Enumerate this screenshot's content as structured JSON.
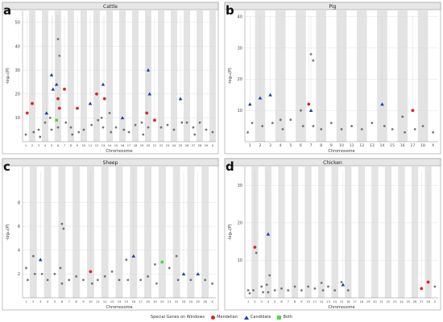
{
  "colors": {
    "band": "#e3e3e3",
    "strip": "#e6e6e6",
    "grid": "#d9d9d9",
    "point": "#555555",
    "mendelian": "#d62728",
    "candidate": "#1f3faa",
    "both": "#4fd44f"
  },
  "legend": {
    "title": "Special Genes on Windows",
    "items": [
      {
        "label": "Mendelian",
        "shape": "circle"
      },
      {
        "label": "Candidate",
        "shape": "triangle"
      },
      {
        "label": "Both",
        "shape": "square"
      }
    ]
  },
  "chart_data": [
    {
      "type": "scatter",
      "panel_label": "a",
      "title": "Cattle",
      "xlabel": "Chromosome",
      "ylabel": "-log₁₀(P)",
      "ylim": [
        0,
        55
      ],
      "yticks": [
        10,
        20,
        30,
        40,
        50
      ],
      "chromosomes": [
        "1",
        "2",
        "3",
        "4",
        "5",
        "6",
        "7",
        "8",
        "9",
        "10",
        "11",
        "12",
        "13",
        "14",
        "15",
        "16",
        "17",
        "18",
        "19",
        "20",
        "21",
        "22",
        "23",
        "24",
        "25",
        "26",
        "27",
        "28",
        "29",
        "X"
      ],
      "points": [
        {
          "chr": "1",
          "y": 3
        },
        {
          "chr": "1",
          "y": 12,
          "type": "mendelian"
        },
        {
          "chr": "2",
          "y": 16,
          "type": "mendelian"
        },
        {
          "chr": "2",
          "y": 4
        },
        {
          "chr": "3",
          "y": 5
        },
        {
          "chr": "3",
          "y": 2
        },
        {
          "chr": "4",
          "y": 8
        },
        {
          "chr": "4",
          "y": 12,
          "type": "candidate"
        },
        {
          "chr": "5",
          "y": 28,
          "type": "candidate"
        },
        {
          "chr": "5",
          "y": 22,
          "type": "candidate"
        },
        {
          "chr": "5",
          "y": 10
        },
        {
          "chr": "5",
          "y": 5
        },
        {
          "chr": "6",
          "y": 43
        },
        {
          "chr": "6",
          "y": 36
        },
        {
          "chr": "6",
          "y": 24,
          "type": "candidate"
        },
        {
          "chr": "6",
          "y": 18,
          "type": "mendelian"
        },
        {
          "chr": "6",
          "y": 14,
          "type": "mendelian"
        },
        {
          "chr": "6",
          "y": 9,
          "type": "both"
        },
        {
          "chr": "6",
          "y": 6
        },
        {
          "chr": "7",
          "y": 22,
          "type": "mendelian"
        },
        {
          "chr": "7",
          "y": 8
        },
        {
          "chr": "8",
          "y": 6
        },
        {
          "chr": "8",
          "y": 3
        },
        {
          "chr": "9",
          "y": 14,
          "type": "mendelian"
        },
        {
          "chr": "9",
          "y": 4
        },
        {
          "chr": "10",
          "y": 5
        },
        {
          "chr": "11",
          "y": 16,
          "type": "candidate"
        },
        {
          "chr": "11",
          "y": 7
        },
        {
          "chr": "12",
          "y": 20,
          "type": "mendelian"
        },
        {
          "chr": "12",
          "y": 9
        },
        {
          "chr": "13",
          "y": 24,
          "type": "candidate"
        },
        {
          "chr": "13",
          "y": 18,
          "type": "mendelian"
        },
        {
          "chr": "13",
          "y": 10
        },
        {
          "chr": "13",
          "y": 6
        },
        {
          "chr": "14",
          "y": 12
        },
        {
          "chr": "14",
          "y": 4
        },
        {
          "chr": "15",
          "y": 6
        },
        {
          "chr": "16",
          "y": 10,
          "type": "candidate"
        },
        {
          "chr": "16",
          "y": 5
        },
        {
          "chr": "17",
          "y": 4
        },
        {
          "chr": "18",
          "y": 7
        },
        {
          "chr": "19",
          "y": 8
        },
        {
          "chr": "19",
          "y": 3
        },
        {
          "chr": "20",
          "y": 30,
          "type": "candidate"
        },
        {
          "chr": "20",
          "y": 20,
          "type": "candidate"
        },
        {
          "chr": "20",
          "y": 12,
          "type": "mendelian"
        },
        {
          "chr": "20",
          "y": 6
        },
        {
          "chr": "21",
          "y": 9,
          "type": "mendelian"
        },
        {
          "chr": "22",
          "y": 6
        },
        {
          "chr": "23",
          "y": 7
        },
        {
          "chr": "24",
          "y": 5
        },
        {
          "chr": "25",
          "y": 18,
          "type": "candidate"
        },
        {
          "chr": "25",
          "y": 8
        },
        {
          "chr": "26",
          "y": 8
        },
        {
          "chr": "27",
          "y": 6
        },
        {
          "chr": "27",
          "y": 3
        },
        {
          "chr": "28",
          "y": 8
        },
        {
          "chr": "29",
          "y": 5
        },
        {
          "chr": "X",
          "y": 4
        }
      ]
    },
    {
      "type": "scatter",
      "panel_label": "b",
      "title": "Pig",
      "xlabel": "Chromosome",
      "ylabel": "-log₁₀(P)",
      "ylim": [
        0,
        42
      ],
      "yticks": [
        10,
        20,
        30,
        40
      ],
      "chromosomes": [
        "1",
        "2",
        "3",
        "4",
        "5",
        "6",
        "7",
        "8",
        "9",
        "10",
        "11",
        "12",
        "13",
        "14",
        "15",
        "16",
        "17",
        "18",
        "X"
      ],
      "points": [
        {
          "chr": "1",
          "y": 12,
          "type": "candidate"
        },
        {
          "chr": "1",
          "y": 6
        },
        {
          "chr": "1",
          "y": 3
        },
        {
          "chr": "2",
          "y": 14,
          "type": "candidate"
        },
        {
          "chr": "2",
          "y": 5
        },
        {
          "chr": "3",
          "y": 15,
          "type": "candidate"
        },
        {
          "chr": "3",
          "y": 6
        },
        {
          "chr": "4",
          "y": 7
        },
        {
          "chr": "4",
          "y": 4
        },
        {
          "chr": "5",
          "y": 7
        },
        {
          "chr": "6",
          "y": 10
        },
        {
          "chr": "6",
          "y": 5
        },
        {
          "chr": "7",
          "y": 28
        },
        {
          "chr": "7",
          "y": 26
        },
        {
          "chr": "7",
          "y": 12,
          "type": "mendelian"
        },
        {
          "chr": "7",
          "y": 10,
          "type": "candidate"
        },
        {
          "chr": "7",
          "y": 5
        },
        {
          "chr": "8",
          "y": 4
        },
        {
          "chr": "9",
          "y": 6
        },
        {
          "chr": "10",
          "y": 4
        },
        {
          "chr": "11",
          "y": 5
        },
        {
          "chr": "12",
          "y": 4
        },
        {
          "chr": "13",
          "y": 6
        },
        {
          "chr": "14",
          "y": 12,
          "type": "candidate"
        },
        {
          "chr": "14",
          "y": 5
        },
        {
          "chr": "15",
          "y": 4
        },
        {
          "chr": "16",
          "y": 8
        },
        {
          "chr": "16",
          "y": 3
        },
        {
          "chr": "17",
          "y": 10,
          "type": "mendelian"
        },
        {
          "chr": "17",
          "y": 4
        },
        {
          "chr": "18",
          "y": 5
        },
        {
          "chr": "X",
          "y": 3
        }
      ]
    },
    {
      "type": "scatter",
      "panel_label": "c",
      "title": "Sheep",
      "xlabel": "Chromosome",
      "ylabel": "-log₁₀(P)",
      "ylim": [
        0,
        11
      ],
      "yticks": [
        2,
        4,
        6,
        8
      ],
      "chromosomes": [
        "1",
        "2",
        "3",
        "4",
        "5",
        "6",
        "7",
        "8",
        "9",
        "10",
        "11",
        "12",
        "13",
        "14",
        "15",
        "16",
        "17",
        "18",
        "19",
        "20",
        "21",
        "22",
        "23",
        "24",
        "25",
        "26",
        "X"
      ],
      "points": [
        {
          "chr": "1",
          "y": 2.5
        },
        {
          "chr": "1",
          "y": 1.5
        },
        {
          "chr": "2",
          "y": 3.5
        },
        {
          "chr": "2",
          "y": 2
        },
        {
          "chr": "3",
          "y": 3.2,
          "type": "candidate"
        },
        {
          "chr": "3",
          "y": 2
        },
        {
          "chr": "4",
          "y": 1.5
        },
        {
          "chr": "5",
          "y": 2
        },
        {
          "chr": "6",
          "y": 6.2
        },
        {
          "chr": "6",
          "y": 5.8
        },
        {
          "chr": "6",
          "y": 2.5
        },
        {
          "chr": "6",
          "y": 1.2
        },
        {
          "chr": "7",
          "y": 1.5
        },
        {
          "chr": "8",
          "y": 1.8
        },
        {
          "chr": "9",
          "y": 1.5
        },
        {
          "chr": "10",
          "y": 2.2,
          "type": "mendelian"
        },
        {
          "chr": "10",
          "y": 1.2
        },
        {
          "chr": "11",
          "y": 1.5
        },
        {
          "chr": "12",
          "y": 1.8
        },
        {
          "chr": "13",
          "y": 2.2
        },
        {
          "chr": "14",
          "y": 1.5
        },
        {
          "chr": "15",
          "y": 3.2
        },
        {
          "chr": "15",
          "y": 1.5
        },
        {
          "chr": "16",
          "y": 3.5,
          "type": "candidate"
        },
        {
          "chr": "17",
          "y": 1.5
        },
        {
          "chr": "18",
          "y": 1.8
        },
        {
          "chr": "19",
          "y": 2.8
        },
        {
          "chr": "19",
          "y": 1.2
        },
        {
          "chr": "20",
          "y": 3.0,
          "type": "both"
        },
        {
          "chr": "21",
          "y": 2.5
        },
        {
          "chr": "22",
          "y": 3.5
        },
        {
          "chr": "22",
          "y": 1.5
        },
        {
          "chr": "23",
          "y": 2.0,
          "type": "candidate"
        },
        {
          "chr": "24",
          "y": 1.5
        },
        {
          "chr": "25",
          "y": 2.0,
          "type": "candidate"
        },
        {
          "chr": "26",
          "y": 1.5
        },
        {
          "chr": "X",
          "y": 1.2
        }
      ]
    },
    {
      "type": "scatter",
      "panel_label": "d",
      "title": "Chicken",
      "xlabel": "Chromosome",
      "ylabel": "-log₁₀(P)",
      "ylim": [
        0,
        35
      ],
      "yticks": [
        10,
        20,
        30
      ],
      "chromosomes": [
        "1",
        "2",
        "3",
        "4",
        "5",
        "6",
        "7",
        "8",
        "9",
        "10",
        "11",
        "12",
        "13",
        "14",
        "15",
        "16",
        "17",
        "18",
        "19",
        "20",
        "21",
        "22",
        "23",
        "24",
        "25",
        "26",
        "27",
        "28",
        "Z"
      ],
      "points": [
        {
          "chr": "1",
          "y": 2
        },
        {
          "chr": "1",
          "y": 1.2
        },
        {
          "chr": "2",
          "y": 13.5,
          "type": "mendelian"
        },
        {
          "chr": "2",
          "y": 12
        },
        {
          "chr": "2",
          "y": 2
        },
        {
          "chr": "3",
          "y": 3
        },
        {
          "chr": "3",
          "y": 1.5
        },
        {
          "chr": "4",
          "y": 17,
          "type": "candidate"
        },
        {
          "chr": "4",
          "y": 6
        },
        {
          "chr": "4",
          "y": 3.5
        },
        {
          "chr": "4",
          "y": 1.5
        },
        {
          "chr": "5",
          "y": 2
        },
        {
          "chr": "6",
          "y": 2.5
        },
        {
          "chr": "7",
          "y": 2
        },
        {
          "chr": "8",
          "y": 3
        },
        {
          "chr": "9",
          "y": 2
        },
        {
          "chr": "10",
          "y": 3
        },
        {
          "chr": "11",
          "y": 2.5
        },
        {
          "chr": "12",
          "y": 4
        },
        {
          "chr": "12",
          "y": 2
        },
        {
          "chr": "13",
          "y": 3
        },
        {
          "chr": "14",
          "y": 2
        },
        {
          "chr": "15",
          "y": 4.2
        },
        {
          "chr": "15",
          "y": 3.5,
          "type": "candidate"
        },
        {
          "chr": "16",
          "y": 2
        },
        {
          "chr": "27",
          "y": 2.5,
          "type": "mendelian"
        },
        {
          "chr": "28",
          "y": 4.2,
          "type": "mendelian"
        },
        {
          "chr": "Z",
          "y": 3
        }
      ]
    }
  ]
}
